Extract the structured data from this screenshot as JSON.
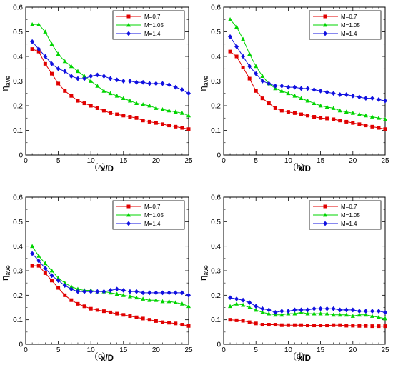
{
  "chart_data": [
    {
      "type": "line",
      "panel_label": "(a)",
      "xlabel": "x/D",
      "ylabel": "η",
      "ylabel_sub": "ave",
      "xlim": [
        0,
        25
      ],
      "ylim": [
        0,
        0.6
      ],
      "xticks": [
        0,
        5,
        10,
        15,
        20,
        25
      ],
      "yticks": [
        0,
        0.1,
        0.2,
        0.3,
        0.4,
        0.5,
        0.6
      ],
      "xtick_labels": [
        "0",
        "5",
        "10",
        "15",
        "20",
        "25"
      ],
      "ytick_labels": [
        "0",
        "0.1",
        "0.2",
        "0.3",
        "0.4",
        "0.5",
        "0.6"
      ],
      "legend_position": "top-right",
      "x": [
        1,
        2,
        3,
        4,
        5,
        6,
        7,
        8,
        9,
        10,
        11,
        12,
        13,
        14,
        15,
        16,
        17,
        18,
        19,
        20,
        21,
        22,
        23,
        24,
        25
      ],
      "series": [
        {
          "name": "M=0.7",
          "color": "#e00000",
          "marker": "square",
          "values": [
            0.43,
            0.42,
            0.37,
            0.33,
            0.29,
            0.26,
            0.24,
            0.22,
            0.21,
            0.2,
            0.19,
            0.18,
            0.17,
            0.165,
            0.16,
            0.155,
            0.15,
            0.14,
            0.135,
            0.13,
            0.125,
            0.12,
            0.115,
            0.11,
            0.105
          ]
        },
        {
          "name": "M=1.05",
          "color": "#00d400",
          "marker": "triangle",
          "values": [
            0.53,
            0.53,
            0.5,
            0.45,
            0.41,
            0.38,
            0.36,
            0.34,
            0.32,
            0.3,
            0.28,
            0.26,
            0.25,
            0.24,
            0.23,
            0.22,
            0.21,
            0.205,
            0.2,
            0.19,
            0.185,
            0.18,
            0.175,
            0.17,
            0.16
          ]
        },
        {
          "name": "M=1.4",
          "color": "#1010e0",
          "marker": "diamond",
          "values": [
            0.46,
            0.43,
            0.4,
            0.37,
            0.35,
            0.34,
            0.32,
            0.31,
            0.31,
            0.32,
            0.325,
            0.32,
            0.31,
            0.305,
            0.3,
            0.3,
            0.295,
            0.295,
            0.29,
            0.29,
            0.29,
            0.285,
            0.275,
            0.265,
            0.25
          ]
        }
      ]
    },
    {
      "type": "line",
      "panel_label": "(b)",
      "xlabel": "x/D",
      "ylabel": "η",
      "ylabel_sub": "ave",
      "xlim": [
        0,
        25
      ],
      "ylim": [
        0,
        0.6
      ],
      "xticks": [
        0,
        5,
        10,
        15,
        20,
        25
      ],
      "yticks": [
        0,
        0.1,
        0.2,
        0.3,
        0.4,
        0.5,
        0.6
      ],
      "xtick_labels": [
        "0",
        "5",
        "10",
        "15",
        "20",
        "25"
      ],
      "ytick_labels": [
        "0",
        "0.1",
        "0.2",
        "0.3",
        "0.4",
        "0.5",
        "0.6"
      ],
      "legend_position": "top-right",
      "x": [
        1,
        2,
        3,
        4,
        5,
        6,
        7,
        8,
        9,
        10,
        11,
        12,
        13,
        14,
        15,
        16,
        17,
        18,
        19,
        20,
        21,
        22,
        23,
        24,
        25
      ],
      "series": [
        {
          "name": "M=0.7",
          "color": "#e00000",
          "marker": "square",
          "values": [
            0.42,
            0.4,
            0.355,
            0.31,
            0.26,
            0.23,
            0.21,
            0.19,
            0.18,
            0.175,
            0.17,
            0.165,
            0.16,
            0.155,
            0.15,
            0.148,
            0.145,
            0.14,
            0.135,
            0.13,
            0.125,
            0.12,
            0.115,
            0.11,
            0.105
          ]
        },
        {
          "name": "M=1.05",
          "color": "#00d400",
          "marker": "triangle",
          "values": [
            0.55,
            0.52,
            0.47,
            0.41,
            0.36,
            0.32,
            0.29,
            0.27,
            0.26,
            0.25,
            0.24,
            0.23,
            0.22,
            0.21,
            0.2,
            0.195,
            0.19,
            0.18,
            0.175,
            0.17,
            0.165,
            0.16,
            0.155,
            0.15,
            0.145
          ]
        },
        {
          "name": "M=1.4",
          "color": "#1010e0",
          "marker": "diamond",
          "values": [
            0.48,
            0.44,
            0.4,
            0.36,
            0.33,
            0.3,
            0.29,
            0.28,
            0.28,
            0.275,
            0.275,
            0.27,
            0.27,
            0.265,
            0.26,
            0.255,
            0.25,
            0.245,
            0.245,
            0.24,
            0.235,
            0.23,
            0.23,
            0.225,
            0.22
          ]
        }
      ]
    },
    {
      "type": "line",
      "panel_label": "(c)",
      "xlabel": "x/D",
      "ylabel": "η",
      "ylabel_sub": "ave",
      "xlim": [
        0,
        25
      ],
      "ylim": [
        0,
        0.6
      ],
      "xticks": [
        0,
        5,
        10,
        15,
        20,
        25
      ],
      "yticks": [
        0,
        0.1,
        0.2,
        0.3,
        0.4,
        0.5,
        0.6
      ],
      "xtick_labels": [
        "0",
        "5",
        "10",
        "15",
        "20",
        "25"
      ],
      "ytick_labels": [
        "0",
        "0.1",
        "0.2",
        "0.3",
        "0.4",
        "0.5",
        "0.6"
      ],
      "legend_position": "top-right",
      "x": [
        1,
        2,
        3,
        4,
        5,
        6,
        7,
        8,
        9,
        10,
        11,
        12,
        13,
        14,
        15,
        16,
        17,
        18,
        19,
        20,
        21,
        22,
        23,
        24,
        25
      ],
      "series": [
        {
          "name": "M=0.7",
          "color": "#e00000",
          "marker": "square",
          "values": [
            0.32,
            0.32,
            0.29,
            0.26,
            0.23,
            0.2,
            0.18,
            0.165,
            0.155,
            0.145,
            0.14,
            0.135,
            0.13,
            0.125,
            0.12,
            0.115,
            0.11,
            0.105,
            0.1,
            0.095,
            0.09,
            0.088,
            0.085,
            0.08,
            0.075
          ]
        },
        {
          "name": "M=1.05",
          "color": "#00d400",
          "marker": "triangle",
          "values": [
            0.4,
            0.36,
            0.33,
            0.3,
            0.27,
            0.25,
            0.235,
            0.225,
            0.22,
            0.22,
            0.215,
            0.215,
            0.21,
            0.205,
            0.2,
            0.195,
            0.19,
            0.185,
            0.18,
            0.18,
            0.175,
            0.175,
            0.17,
            0.165,
            0.155
          ]
        },
        {
          "name": "M=1.4",
          "color": "#1010e0",
          "marker": "diamond",
          "values": [
            0.37,
            0.34,
            0.31,
            0.28,
            0.26,
            0.24,
            0.225,
            0.215,
            0.215,
            0.215,
            0.215,
            0.215,
            0.22,
            0.225,
            0.22,
            0.215,
            0.215,
            0.21,
            0.21,
            0.21,
            0.21,
            0.21,
            0.21,
            0.21,
            0.2
          ]
        }
      ]
    },
    {
      "type": "line",
      "panel_label": "(d)",
      "xlabel": "x/D",
      "ylabel": "η",
      "ylabel_sub": "ave",
      "xlim": [
        0,
        25
      ],
      "ylim": [
        0,
        0.6
      ],
      "xticks": [
        0,
        5,
        10,
        15,
        20,
        25
      ],
      "yticks": [
        0,
        0.1,
        0.2,
        0.3,
        0.4,
        0.5,
        0.6
      ],
      "xtick_labels": [
        "0",
        "5",
        "10",
        "15",
        "20",
        "25"
      ],
      "ytick_labels": [
        "0",
        "0.1",
        "0.2",
        "0.3",
        "0.4",
        "0.5",
        "0.6"
      ],
      "legend_position": "top-right",
      "x": [
        1,
        2,
        3,
        4,
        5,
        6,
        7,
        8,
        9,
        10,
        11,
        12,
        13,
        14,
        15,
        16,
        17,
        18,
        19,
        20,
        21,
        22,
        23,
        24,
        25
      ],
      "series": [
        {
          "name": "M=0.7",
          "color": "#e00000",
          "marker": "square",
          "values": [
            0.1,
            0.098,
            0.096,
            0.09,
            0.085,
            0.08,
            0.08,
            0.08,
            0.078,
            0.078,
            0.078,
            0.078,
            0.077,
            0.077,
            0.077,
            0.077,
            0.078,
            0.078,
            0.076,
            0.076,
            0.075,
            0.075,
            0.074,
            0.074,
            0.074
          ]
        },
        {
          "name": "M=1.05",
          "color": "#00d400",
          "marker": "triangle",
          "values": [
            0.155,
            0.165,
            0.16,
            0.15,
            0.14,
            0.13,
            0.125,
            0.12,
            0.12,
            0.125,
            0.125,
            0.13,
            0.125,
            0.125,
            0.125,
            0.125,
            0.12,
            0.12,
            0.12,
            0.115,
            0.12,
            0.12,
            0.115,
            0.11,
            0.105
          ]
        },
        {
          "name": "M=1.4",
          "color": "#1010e0",
          "marker": "diamond",
          "values": [
            0.19,
            0.185,
            0.18,
            0.17,
            0.155,
            0.145,
            0.14,
            0.13,
            0.135,
            0.135,
            0.14,
            0.14,
            0.14,
            0.145,
            0.145,
            0.145,
            0.145,
            0.14,
            0.14,
            0.14,
            0.135,
            0.135,
            0.135,
            0.135,
            0.13
          ]
        }
      ]
    }
  ]
}
